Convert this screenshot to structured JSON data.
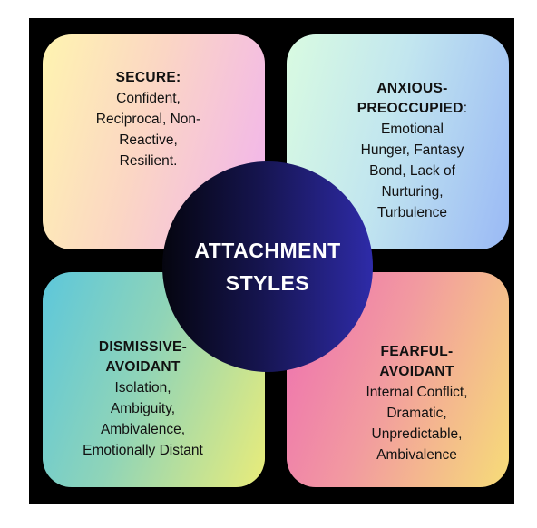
{
  "center": {
    "line1": "ATTACHMENT",
    "line2": "STYLES"
  },
  "quadrants": [
    {
      "heading_lines": [
        "SECURE:"
      ],
      "heading_suffix": "",
      "body_lines": [
        "Confident,",
        "Reciprocal, Non-",
        "Reactive,",
        "Resilient."
      ]
    },
    {
      "heading_lines": [
        "ANXIOUS-",
        "PREOCCUPIED"
      ],
      "heading_suffix": ":",
      "body_lines": [
        "Emotional",
        "Hunger, Fantasy",
        "Bond, Lack of",
        "Nurturing,",
        "Turbulence"
      ]
    },
    {
      "heading_lines": [
        "DISMISSIVE-",
        "AVOIDANT"
      ],
      "heading_suffix": "",
      "body_lines": [
        "Isolation,",
        "Ambiguity,",
        "Ambivalence,",
        "Emotionally Distant"
      ]
    },
    {
      "heading_lines": [
        "FEARFUL-",
        "AVOIDANT"
      ],
      "heading_suffix": "",
      "body_lines": [
        "Internal Conflict,",
        "Dramatic,",
        "Unpredictable,",
        "Ambivalence"
      ]
    }
  ],
  "colors": {
    "background": "#000000",
    "circle": "#1f1d78",
    "secure": [
      "#fff4b0",
      "#f1b3ee"
    ],
    "anxious": [
      "#d9fbe1",
      "#9ab9f5"
    ],
    "dismissive": [
      "#5dc7db",
      "#e9ec7a"
    ],
    "fearful": [
      "#ee6fb1",
      "#f6dc78"
    ]
  }
}
